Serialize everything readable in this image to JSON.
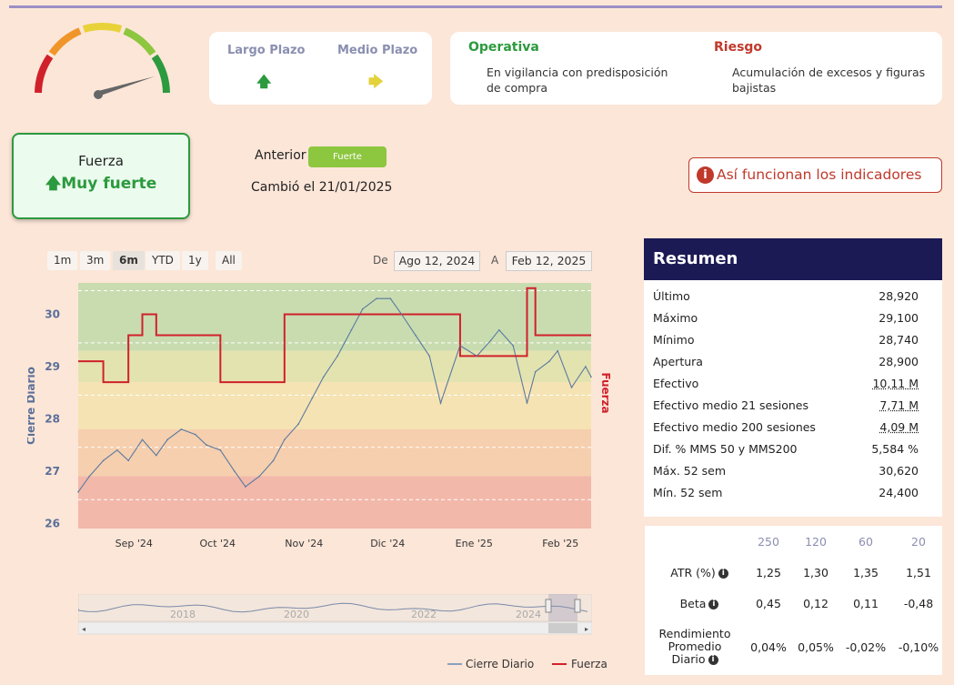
{
  "horizons": {
    "largo": {
      "label": "Largo Plazo",
      "arrow": "🡅",
      "color": "#2c9a3e"
    },
    "medio": {
      "label": "Medio Plazo",
      "arrow": "🡆",
      "color": "#e4d23c"
    }
  },
  "operativa": {
    "title": "Operativa",
    "text": "En vigilancia con predisposición de compra"
  },
  "riesgo": {
    "title": "Riesgo",
    "text": "Acumulación de excesos y figuras bajistas"
  },
  "fuerza": {
    "title": "Fuerza",
    "arrow": "🡅",
    "value": "Muy fuerte"
  },
  "anterior": {
    "label": "Anterior",
    "badge": "Fuerte"
  },
  "cambio": "Cambió el 21/01/2025",
  "info_button": {
    "icon": "i",
    "label": "Así funcionan los indicadores"
  },
  "range_buttons": [
    "1m",
    "3m",
    "6m",
    "YTD",
    "1y",
    "All"
  ],
  "range_selected": "6m",
  "date_range": {
    "from_label": "De",
    "from": "Ago 12, 2024",
    "to_label": "A",
    "to": "Feb 12, 2025"
  },
  "chart_data": {
    "type": "line",
    "x": [
      "2024-08-12",
      "2024-08-16",
      "2024-08-21",
      "2024-08-26",
      "2024-08-30",
      "2024-09-04",
      "2024-09-09",
      "2024-09-13",
      "2024-09-18",
      "2024-09-23",
      "2024-09-27",
      "2024-10-02",
      "2024-10-07",
      "2024-10-11",
      "2024-10-16",
      "2024-10-21",
      "2024-10-25",
      "2024-10-30",
      "2024-11-04",
      "2024-11-08",
      "2024-11-13",
      "2024-11-18",
      "2024-11-22",
      "2024-11-27",
      "2024-12-02",
      "2024-12-06",
      "2024-12-11",
      "2024-12-16",
      "2024-12-20",
      "2024-12-27",
      "2025-01-02",
      "2025-01-07",
      "2025-01-10",
      "2025-01-15",
      "2025-01-20",
      "2025-01-23",
      "2025-01-28",
      "2025-01-31",
      "2025-02-05",
      "2025-02-10",
      "2025-02-12"
    ],
    "series": [
      {
        "name": "Cierre Diario",
        "color": "#5a7aa0",
        "values": [
          26.6,
          26.9,
          27.2,
          27.4,
          27.2,
          27.6,
          27.3,
          27.6,
          27.8,
          27.7,
          27.5,
          27.4,
          27.0,
          26.7,
          26.9,
          27.2,
          27.6,
          27.9,
          28.4,
          28.8,
          29.2,
          29.7,
          30.1,
          30.3,
          30.3,
          30.0,
          29.6,
          29.2,
          28.3,
          29.4,
          29.2,
          29.5,
          29.7,
          29.4,
          28.3,
          28.9,
          29.1,
          29.3,
          28.6,
          29.0,
          28.8
        ]
      },
      {
        "name": "Fuerza",
        "color": "#d0212b",
        "values": [
          29.1,
          29.1,
          28.7,
          28.7,
          29.6,
          30.0,
          29.6,
          29.6,
          29.6,
          29.6,
          29.6,
          28.7,
          28.7,
          28.7,
          28.7,
          28.7,
          30.0,
          30.0,
          30.0,
          30.0,
          30.0,
          30.0,
          30.0,
          30.0,
          30.0,
          30.0,
          30.0,
          30.0,
          30.0,
          29.2,
          29.2,
          29.2,
          29.2,
          29.2,
          30.5,
          29.6,
          29.6,
          29.6,
          29.6,
          29.6,
          29.6
        ]
      }
    ],
    "x_tick_labels": [
      "Sep '24",
      "Oct '24",
      "Nov '24",
      "Dic '24",
      "Ene '25",
      "Feb '25"
    ],
    "ylabel": "Cierre Diario",
    "y2label": "Fuerza",
    "ylim": [
      25.9,
      30.6
    ],
    "y_ticks": [
      26,
      27,
      28,
      29,
      30
    ],
    "bands": [
      {
        "from": 29.3,
        "to": 30.6,
        "color": "#c9dcb0"
      },
      {
        "from": 28.7,
        "to": 29.3,
        "color": "#e3e3b0"
      },
      {
        "from": 27.8,
        "to": 28.7,
        "color": "#f5e3b3"
      },
      {
        "from": 26.9,
        "to": 27.8,
        "color": "#f6cfae"
      },
      {
        "from": 25.9,
        "to": 26.9,
        "color": "#f2b8aa"
      }
    ],
    "navigator_labels": [
      "2018",
      "2020",
      "2022",
      "2024"
    ]
  },
  "legend": [
    {
      "label": "Cierre Diario",
      "color": "#8aa0c0"
    },
    {
      "label": "Fuerza",
      "color": "#d0212b"
    }
  ],
  "resumen": {
    "title": "Resumen",
    "rows": [
      {
        "label": "Último",
        "value": "28,920"
      },
      {
        "label": "Máximo",
        "value": "29,100"
      },
      {
        "label": "Mínimo",
        "value": "28,740"
      },
      {
        "label": "Apertura",
        "value": "28,900"
      },
      {
        "label": "Efectivo",
        "value": "10,11 M"
      },
      {
        "label": "Efectivo medio 21 sesiones",
        "value": "7,71 M"
      },
      {
        "label": "Efectivo medio 200 sesiones",
        "value": "4,09 M"
      },
      {
        "label": "Dif. % MMS 50 y MMS200",
        "value": "5,584 %"
      },
      {
        "label": "Máx. 52 sem",
        "value": "30,620"
      },
      {
        "label": "Mín. 52 sem",
        "value": "24,400"
      }
    ]
  },
  "atr_table": {
    "headers": [
      "250",
      "120",
      "60",
      "20"
    ],
    "rows": [
      {
        "label": "ATR (%)",
        "values": [
          "1,25",
          "1,30",
          "1,35",
          "1,51"
        ]
      },
      {
        "label": "Beta",
        "values": [
          "0,45",
          "0,12",
          "0,11",
          "-0,48"
        ]
      },
      {
        "label": "Rendimiento Promedio Diario",
        "values": [
          "0,04%",
          "0,05%",
          "-0,02%",
          "-0,10%"
        ]
      }
    ]
  }
}
